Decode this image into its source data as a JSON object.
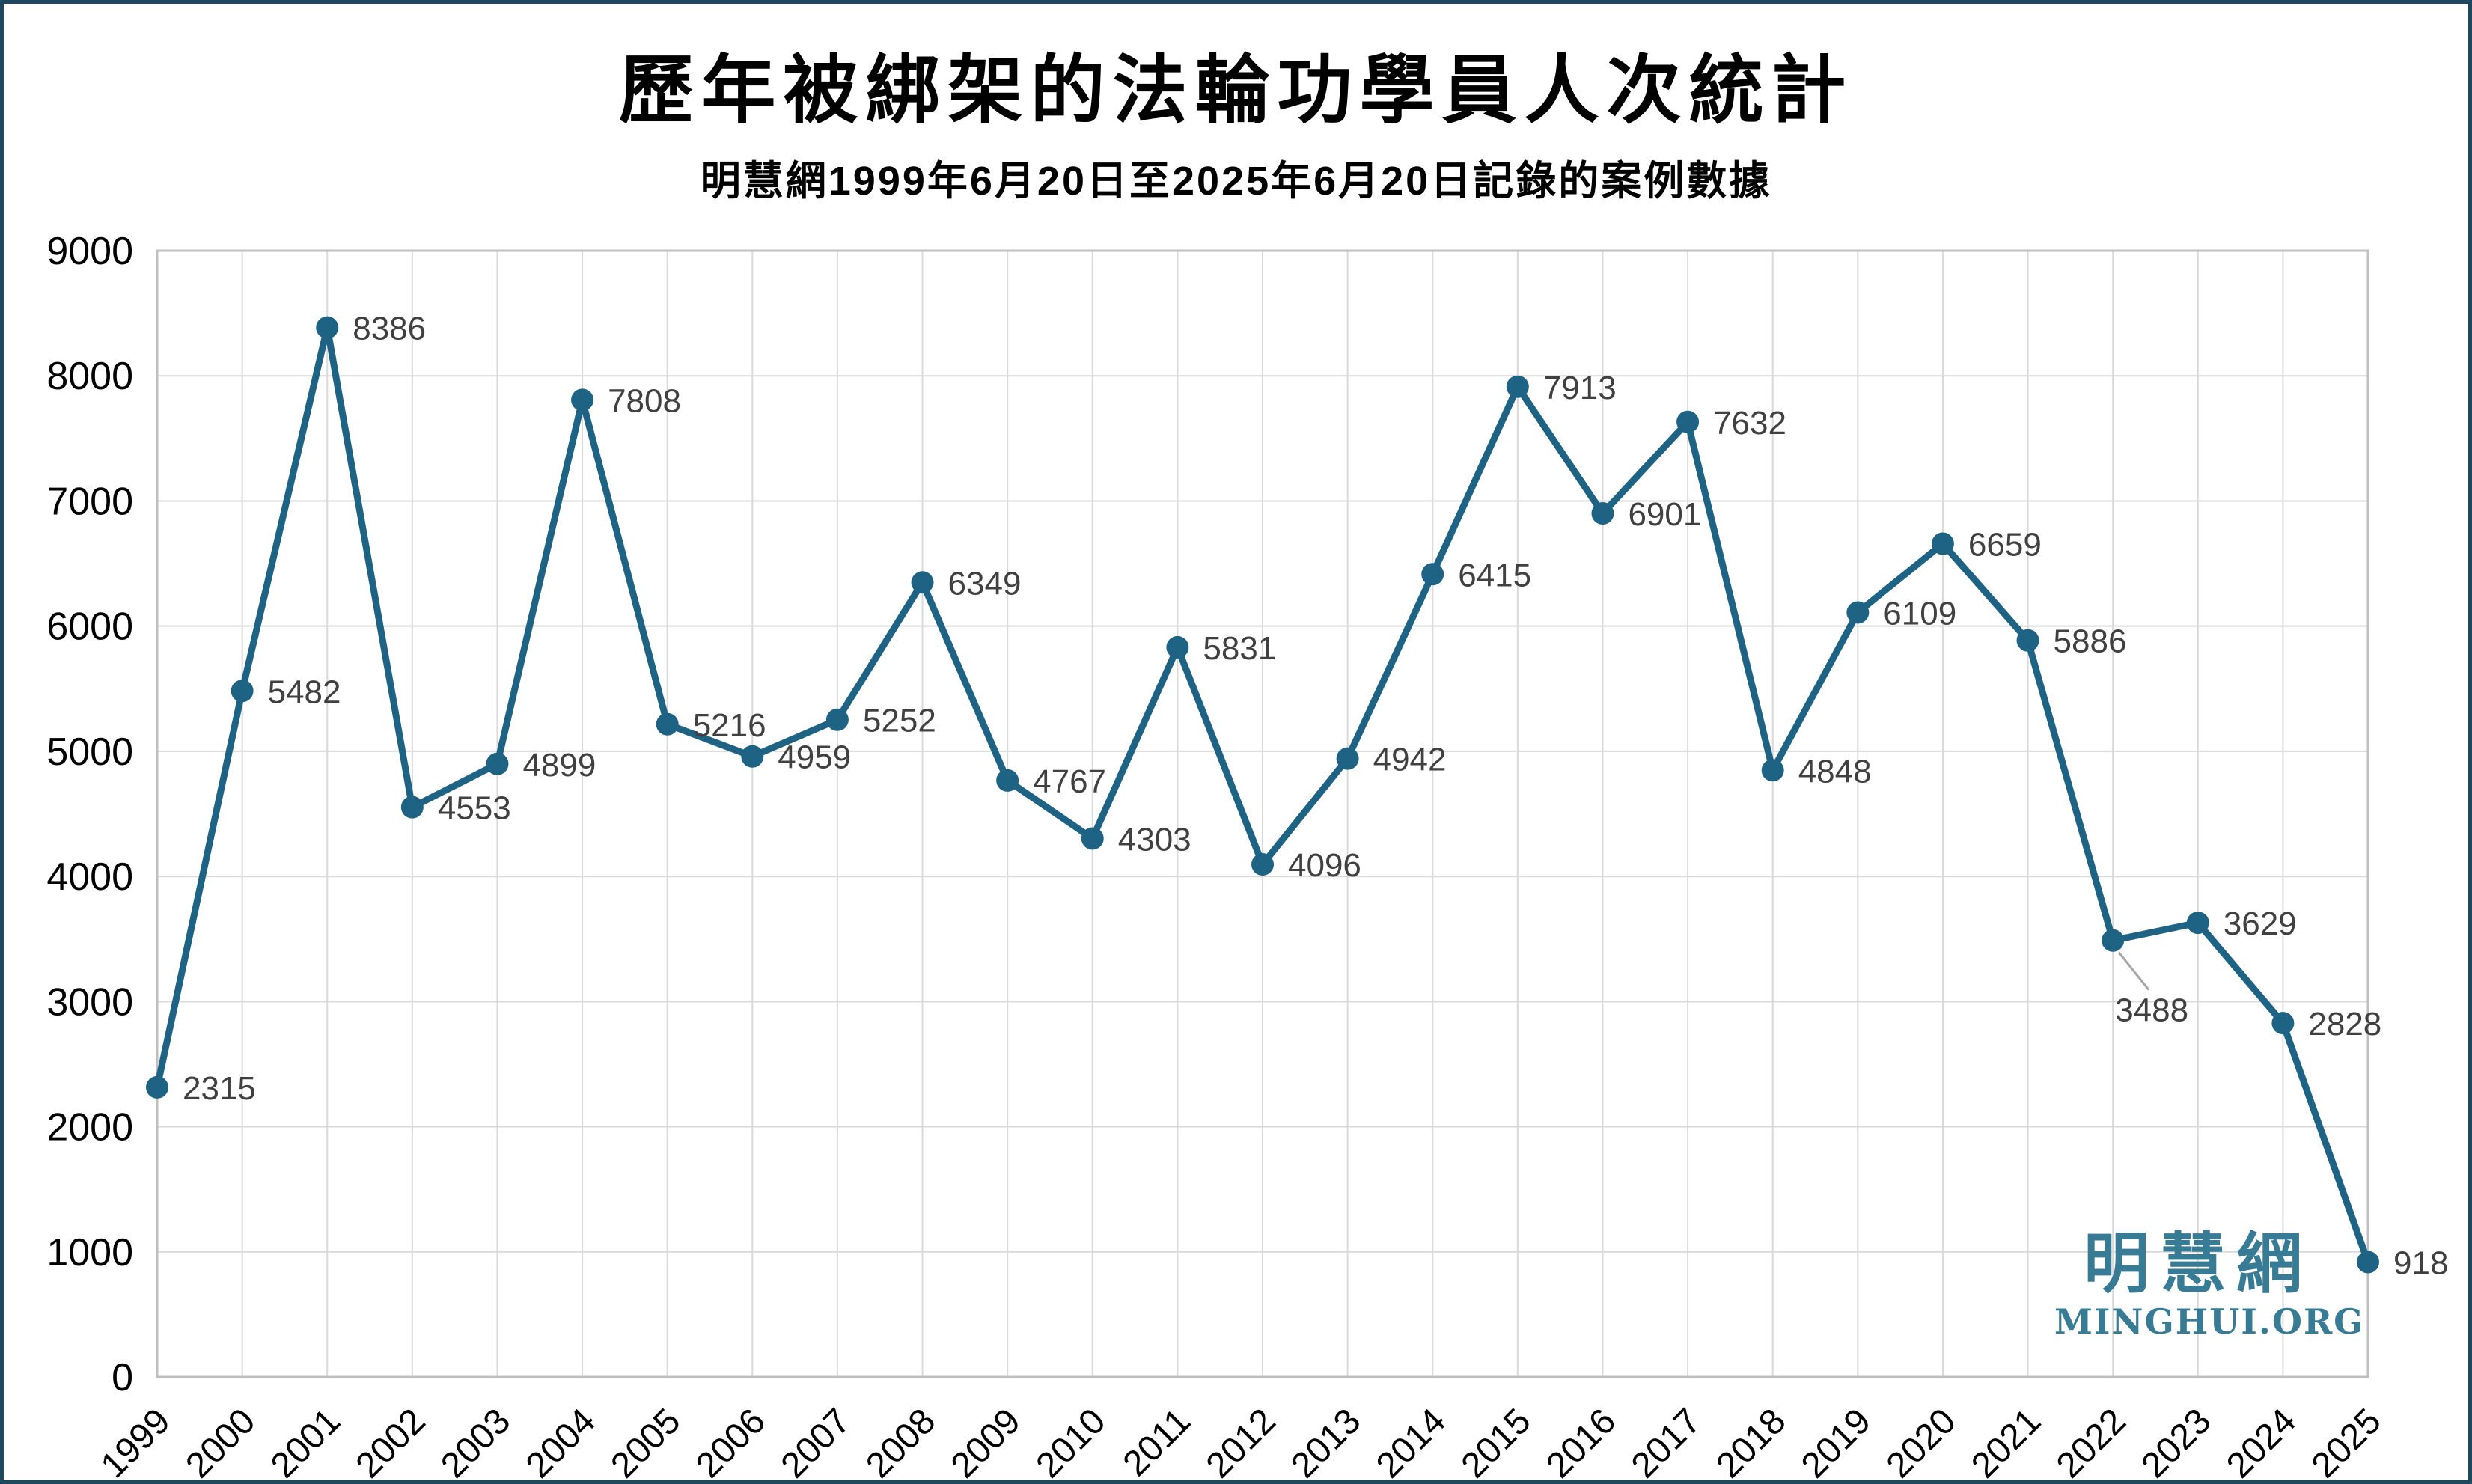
{
  "page": {
    "title": "歷年被綁架的法輪功學員人次統計",
    "subtitle": "明慧網1999年6月20日至2025年6月20日記錄的案例數據",
    "border_color": "#1c4960",
    "background_color": "#ffffff"
  },
  "watermark": {
    "cjk": "明慧網",
    "latin": "MINGHUI.ORG",
    "color": "#377b95"
  },
  "chart_data": {
    "type": "line",
    "title": "歷年被綁架的法輪功學員人次統計",
    "subtitle": "明慧網1999年6月20日至2025年6月20日記錄的案例數據",
    "xlabel": "",
    "ylabel": "",
    "categories": [
      "1999",
      "2000",
      "2001",
      "2002",
      "2003",
      "2004",
      "2005",
      "2006",
      "2007",
      "2008",
      "2009",
      "2010",
      "2011",
      "2012",
      "2013",
      "2014",
      "2015",
      "2016",
      "2017",
      "2018",
      "2019",
      "2020",
      "2021",
      "2022",
      "2023",
      "2024",
      "2025"
    ],
    "values": [
      2315,
      5482,
      8386,
      4553,
      4899,
      7808,
      5216,
      4959,
      5252,
      6349,
      4767,
      4303,
      5831,
      4096,
      4942,
      6415,
      7913,
      6901,
      7632,
      4848,
      6109,
      6659,
      5886,
      3488,
      3629,
      2828,
      918
    ],
    "ylim": [
      0,
      9000
    ],
    "ytick_step": 1000,
    "grid": true,
    "legend": false,
    "data_labels": true,
    "xtick_rotation_deg": 45,
    "line_color": "#1f6384",
    "marker_color": "#1f6384",
    "label_color": "#404040",
    "axis_text_color": "#000000",
    "gridline_color": "#d9d9d9",
    "plot_border_color": "#bfbfbf",
    "leader_line_color": "#a6a6a6",
    "label_overrides": {
      "2022": {
        "position": "below",
        "leader": true
      }
    }
  }
}
